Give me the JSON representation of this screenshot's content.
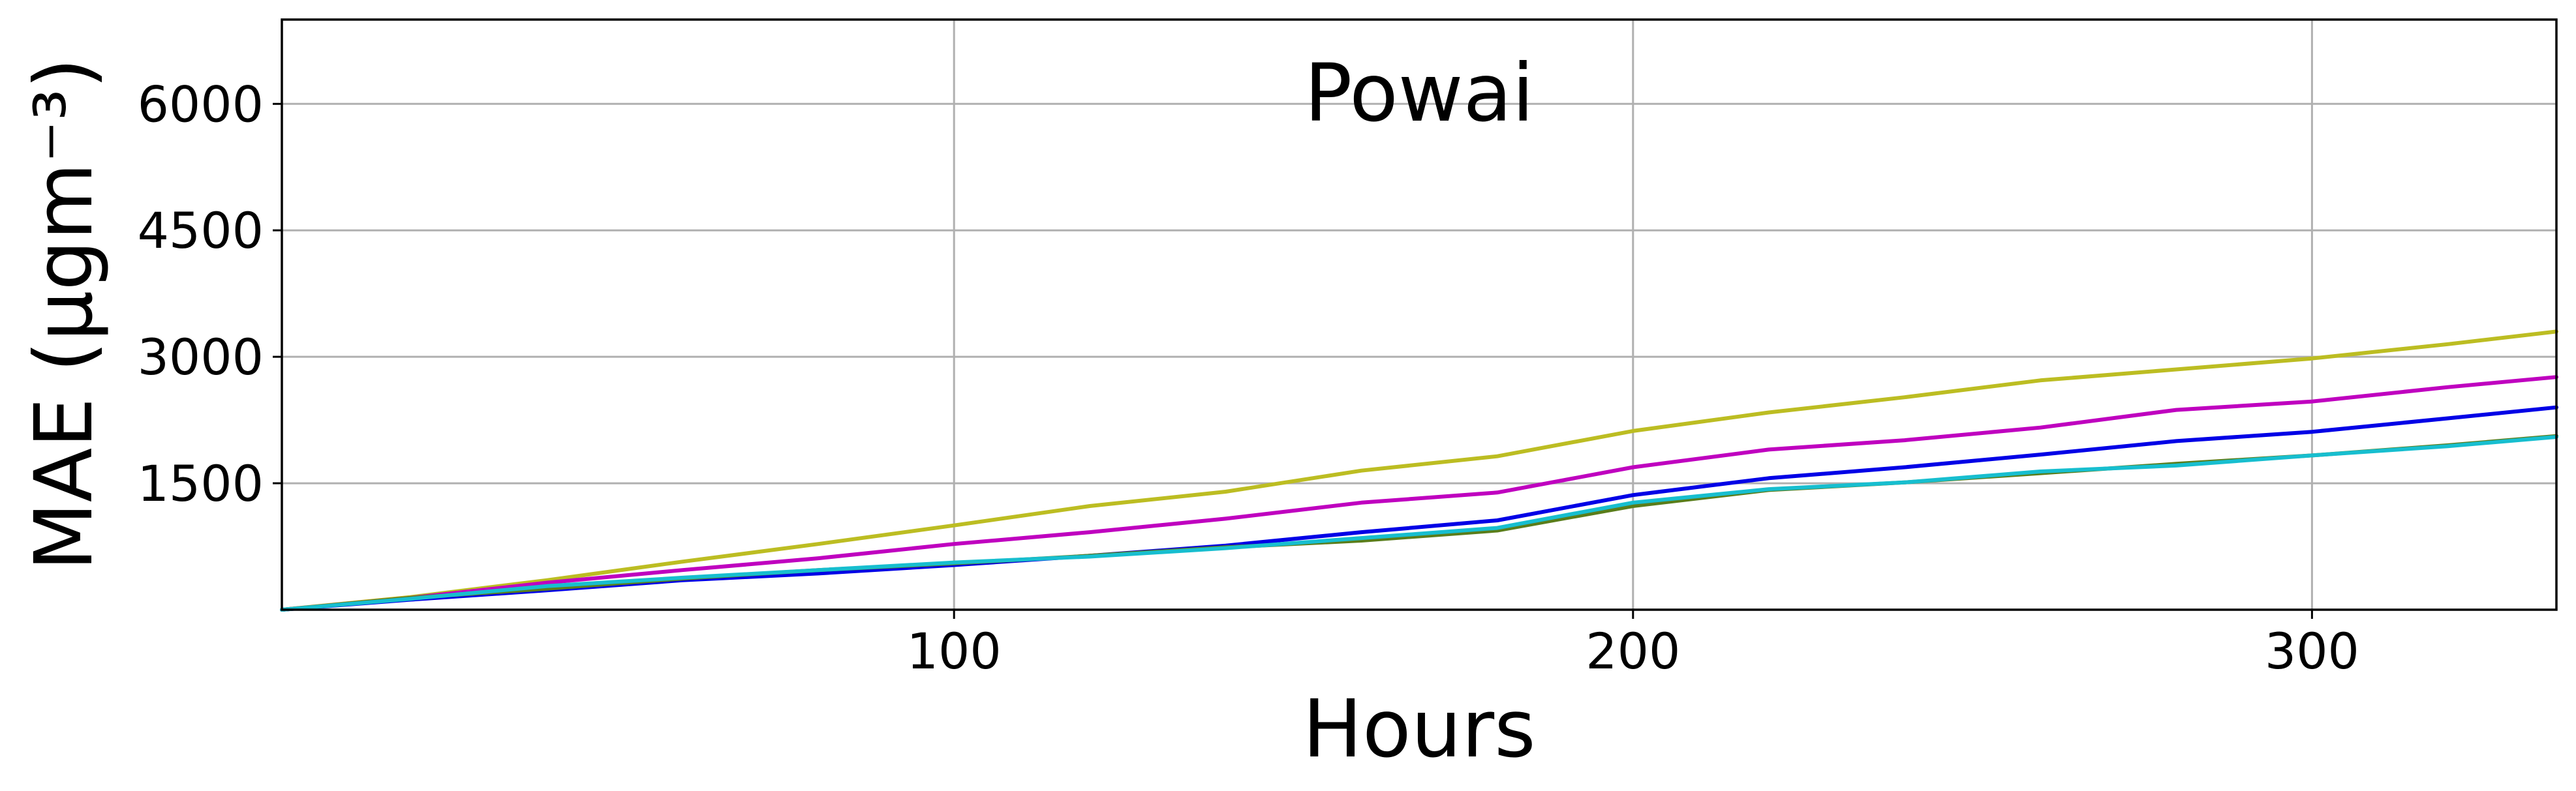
{
  "chart_data": {
    "type": "line",
    "title": "Powai",
    "xlabel": "Hours",
    "ylabel": "MAE (μgm⁻³)",
    "xlim": [
      1,
      336
    ],
    "ylim": [
      0,
      7000
    ],
    "xticks": [
      100,
      200,
      300
    ],
    "yticks": [
      1500,
      3000,
      4500,
      6000
    ],
    "grid": true,
    "series": [
      {
        "color": "#bcbd22",
        "points": [
          [
            1,
            0
          ],
          [
            20,
            150
          ],
          [
            40,
            350
          ],
          [
            60,
            570
          ],
          [
            80,
            780
          ],
          [
            100,
            1000
          ],
          [
            120,
            1230
          ],
          [
            140,
            1400
          ],
          [
            160,
            1650
          ],
          [
            180,
            1820
          ],
          [
            200,
            2120
          ],
          [
            220,
            2340
          ],
          [
            240,
            2520
          ],
          [
            260,
            2720
          ],
          [
            280,
            2850
          ],
          [
            300,
            2980
          ],
          [
            320,
            3150
          ],
          [
            336,
            3300
          ]
        ]
      },
      {
        "color": "#bf00bf",
        "points": [
          [
            1,
            0
          ],
          [
            20,
            140
          ],
          [
            40,
            320
          ],
          [
            60,
            470
          ],
          [
            80,
            610
          ],
          [
            100,
            780
          ],
          [
            120,
            920
          ],
          [
            140,
            1080
          ],
          [
            160,
            1270
          ],
          [
            180,
            1390
          ],
          [
            200,
            1690
          ],
          [
            220,
            1900
          ],
          [
            240,
            2010
          ],
          [
            260,
            2160
          ],
          [
            280,
            2370
          ],
          [
            300,
            2470
          ],
          [
            320,
            2640
          ],
          [
            336,
            2760
          ]
        ]
      },
      {
        "color": "#0000e6",
        "points": [
          [
            1,
            0
          ],
          [
            20,
            120
          ],
          [
            40,
            230
          ],
          [
            60,
            350
          ],
          [
            80,
            430
          ],
          [
            100,
            530
          ],
          [
            120,
            640
          ],
          [
            140,
            760
          ],
          [
            160,
            920
          ],
          [
            180,
            1060
          ],
          [
            200,
            1360
          ],
          [
            220,
            1560
          ],
          [
            240,
            1690
          ],
          [
            260,
            1840
          ],
          [
            280,
            2000
          ],
          [
            300,
            2110
          ],
          [
            320,
            2270
          ],
          [
            336,
            2400
          ]
        ]
      },
      {
        "color": "#5a7d1a",
        "points": [
          [
            1,
            0
          ],
          [
            20,
            140
          ],
          [
            40,
            250
          ],
          [
            60,
            370
          ],
          [
            80,
            470
          ],
          [
            100,
            550
          ],
          [
            120,
            640
          ],
          [
            140,
            740
          ],
          [
            160,
            820
          ],
          [
            180,
            940
          ],
          [
            200,
            1230
          ],
          [
            220,
            1420
          ],
          [
            240,
            1510
          ],
          [
            260,
            1620
          ],
          [
            280,
            1730
          ],
          [
            300,
            1830
          ],
          [
            320,
            1950
          ],
          [
            336,
            2060
          ]
        ]
      },
      {
        "color": "#17becf",
        "points": [
          [
            1,
            0
          ],
          [
            20,
            130
          ],
          [
            40,
            280
          ],
          [
            60,
            380
          ],
          [
            80,
            470
          ],
          [
            100,
            560
          ],
          [
            120,
            630
          ],
          [
            140,
            730
          ],
          [
            160,
            850
          ],
          [
            180,
            970
          ],
          [
            200,
            1270
          ],
          [
            220,
            1430
          ],
          [
            240,
            1510
          ],
          [
            260,
            1640
          ],
          [
            280,
            1710
          ],
          [
            300,
            1830
          ],
          [
            320,
            1940
          ],
          [
            336,
            2050
          ]
        ]
      }
    ]
  }
}
